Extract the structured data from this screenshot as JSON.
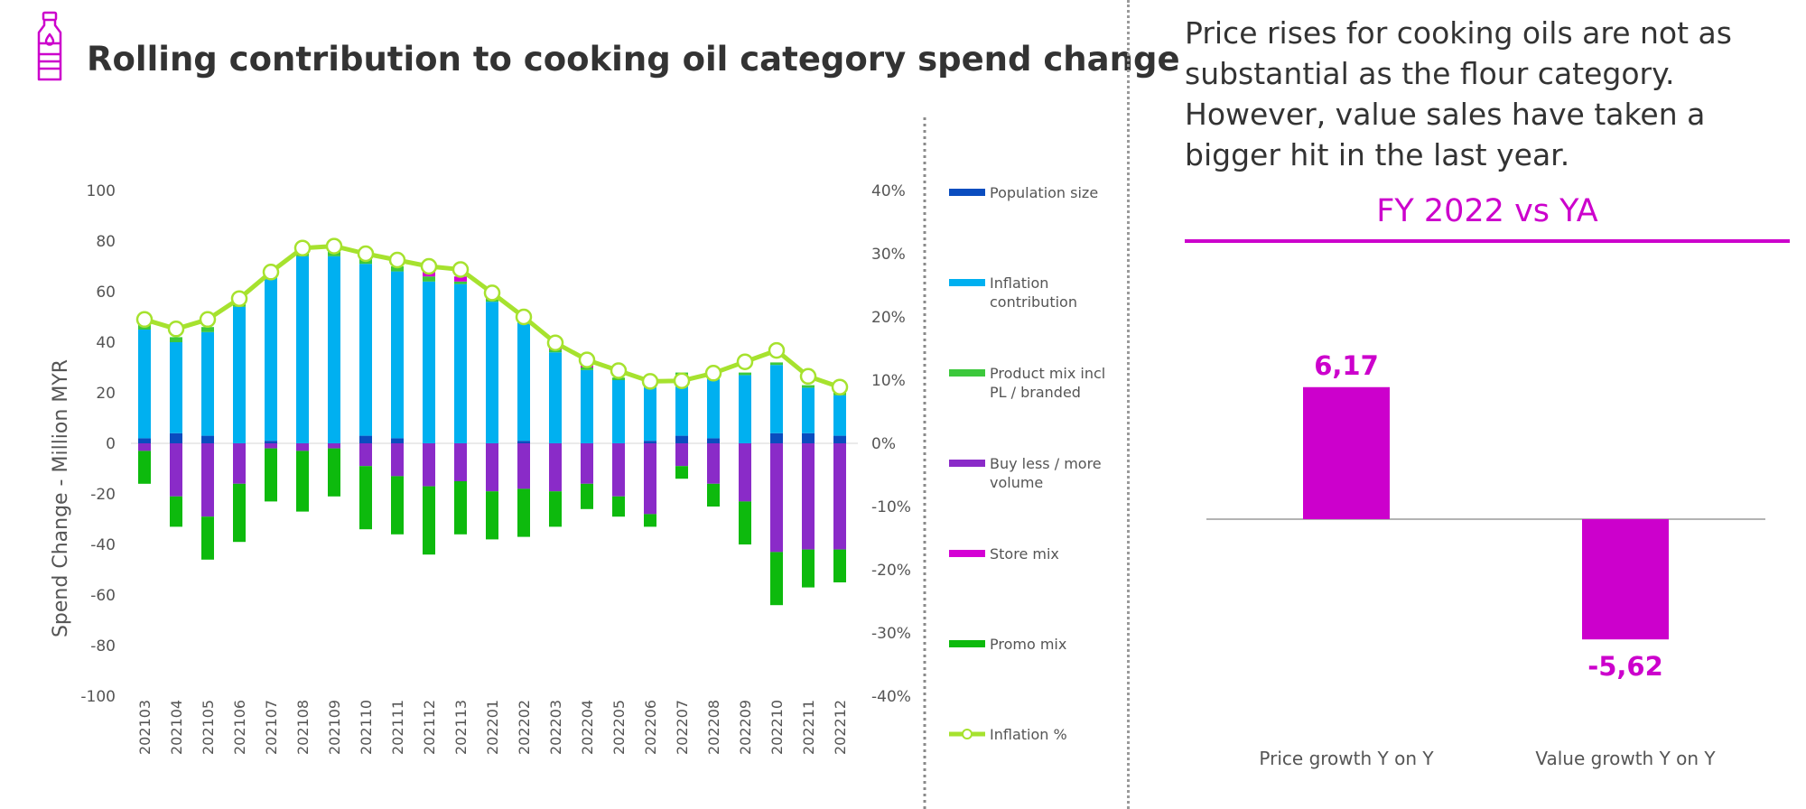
{
  "title": "Rolling contribution to cooking oil category spend change",
  "commentary": "Price rises for cooking oils are not as substantial as the flour category. However, value sales have taken a bigger hit in the last year.",
  "colors": {
    "population": "#0a4dbf",
    "inflation_contribution": "#00b0f0",
    "product_mix": "#3cc83c",
    "buy_less_more": "#8a2bc8",
    "store_mix": "#d400d4",
    "promo_mix": "#0dba0d",
    "inflation_line": "#a6e22e",
    "accent": "#cc00cc"
  },
  "chart_data": [
    {
      "type": "bar",
      "stacked": true,
      "title": "",
      "ylabel": "Spend Change - Million MYR",
      "ylim": [
        -100,
        100
      ],
      "yticks": [
        -100,
        -80,
        -60,
        -40,
        -20,
        0,
        20,
        40,
        60,
        80,
        100
      ],
      "y2lim": [
        -0.4,
        0.4
      ],
      "y2ticks": [
        "-40%",
        "-30%",
        "-20%",
        "-10%",
        "0%",
        "10%",
        "20%",
        "30%",
        "40%"
      ],
      "categories": [
        "202103",
        "202104",
        "202105",
        "202106",
        "202107",
        "202108",
        "202109",
        "202110",
        "202111",
        "202112",
        "202113",
        "202201",
        "202202",
        "202203",
        "202204",
        "202205",
        "202206",
        "202207",
        "202208",
        "202209",
        "202210",
        "202211",
        "202212"
      ],
      "series": [
        {
          "name": "Population size",
          "key": "population",
          "values": [
            2,
            4,
            3,
            0,
            1,
            0,
            0,
            3,
            2,
            0,
            0,
            0,
            1,
            0,
            0,
            0,
            1,
            3,
            2,
            0,
            4,
            4,
            3
          ]
        },
        {
          "name": "Inflation contribution",
          "key": "inflation_contribution",
          "values": [
            43,
            36,
            41,
            54,
            66,
            74,
            74,
            68,
            66,
            64,
            63,
            56,
            48,
            36,
            29,
            25,
            23,
            24,
            25,
            27,
            27,
            18,
            16
          ]
        },
        {
          "name": "Product mix incl PL / branded",
          "key": "product_mix",
          "values": [
            2,
            2,
            2,
            1,
            1,
            2,
            2,
            2,
            2,
            2,
            1,
            1,
            1,
            1,
            1,
            1,
            1,
            1,
            1,
            1,
            1,
            1,
            1
          ]
        },
        {
          "name": "Buy less / more volume",
          "key": "buy_less_more",
          "values": [
            -3,
            -21,
            -29,
            -16,
            -2,
            -3,
            -2,
            -9,
            -13,
            -17,
            -15,
            -19,
            -18,
            -19,
            -16,
            -21,
            -28,
            -9,
            -16,
            -23,
            -43,
            -42,
            -42
          ]
        },
        {
          "name": "Store mix",
          "key": "store_mix",
          "values": [
            0,
            0,
            0,
            1,
            1,
            1,
            1,
            0,
            0,
            2,
            2,
            1,
            1,
            1,
            1,
            0,
            0,
            0,
            0,
            0,
            0,
            0,
            0
          ]
        },
        {
          "name": "Promo mix",
          "key": "promo_mix",
          "values": [
            -13,
            -12,
            -17,
            -23,
            -21,
            -24,
            -19,
            -25,
            -23,
            -27,
            -21,
            -19,
            -19,
            -14,
            -10,
            -8,
            -5,
            -5,
            -9,
            -17,
            -21,
            -15,
            -13
          ]
        },
        {
          "name": "Inflation %",
          "key": "inflation_line",
          "type": "line",
          "axis": "right",
          "values": [
            0.196,
            0.181,
            0.196,
            0.229,
            0.271,
            0.309,
            0.312,
            0.3,
            0.29,
            0.28,
            0.275,
            0.238,
            0.2,
            0.159,
            0.132,
            0.115,
            0.098,
            0.099,
            0.111,
            0.129,
            0.147,
            0.106,
            0.089
          ]
        }
      ],
      "legend_position": "right"
    },
    {
      "type": "bar",
      "title": "FY 2022 vs YA",
      "categories": [
        "Price growth Y on Y",
        "Value growth Y on Y"
      ],
      "values": [
        6.17,
        -5.62
      ],
      "value_labels": [
        "6,17",
        "-5,62"
      ]
    }
  ]
}
